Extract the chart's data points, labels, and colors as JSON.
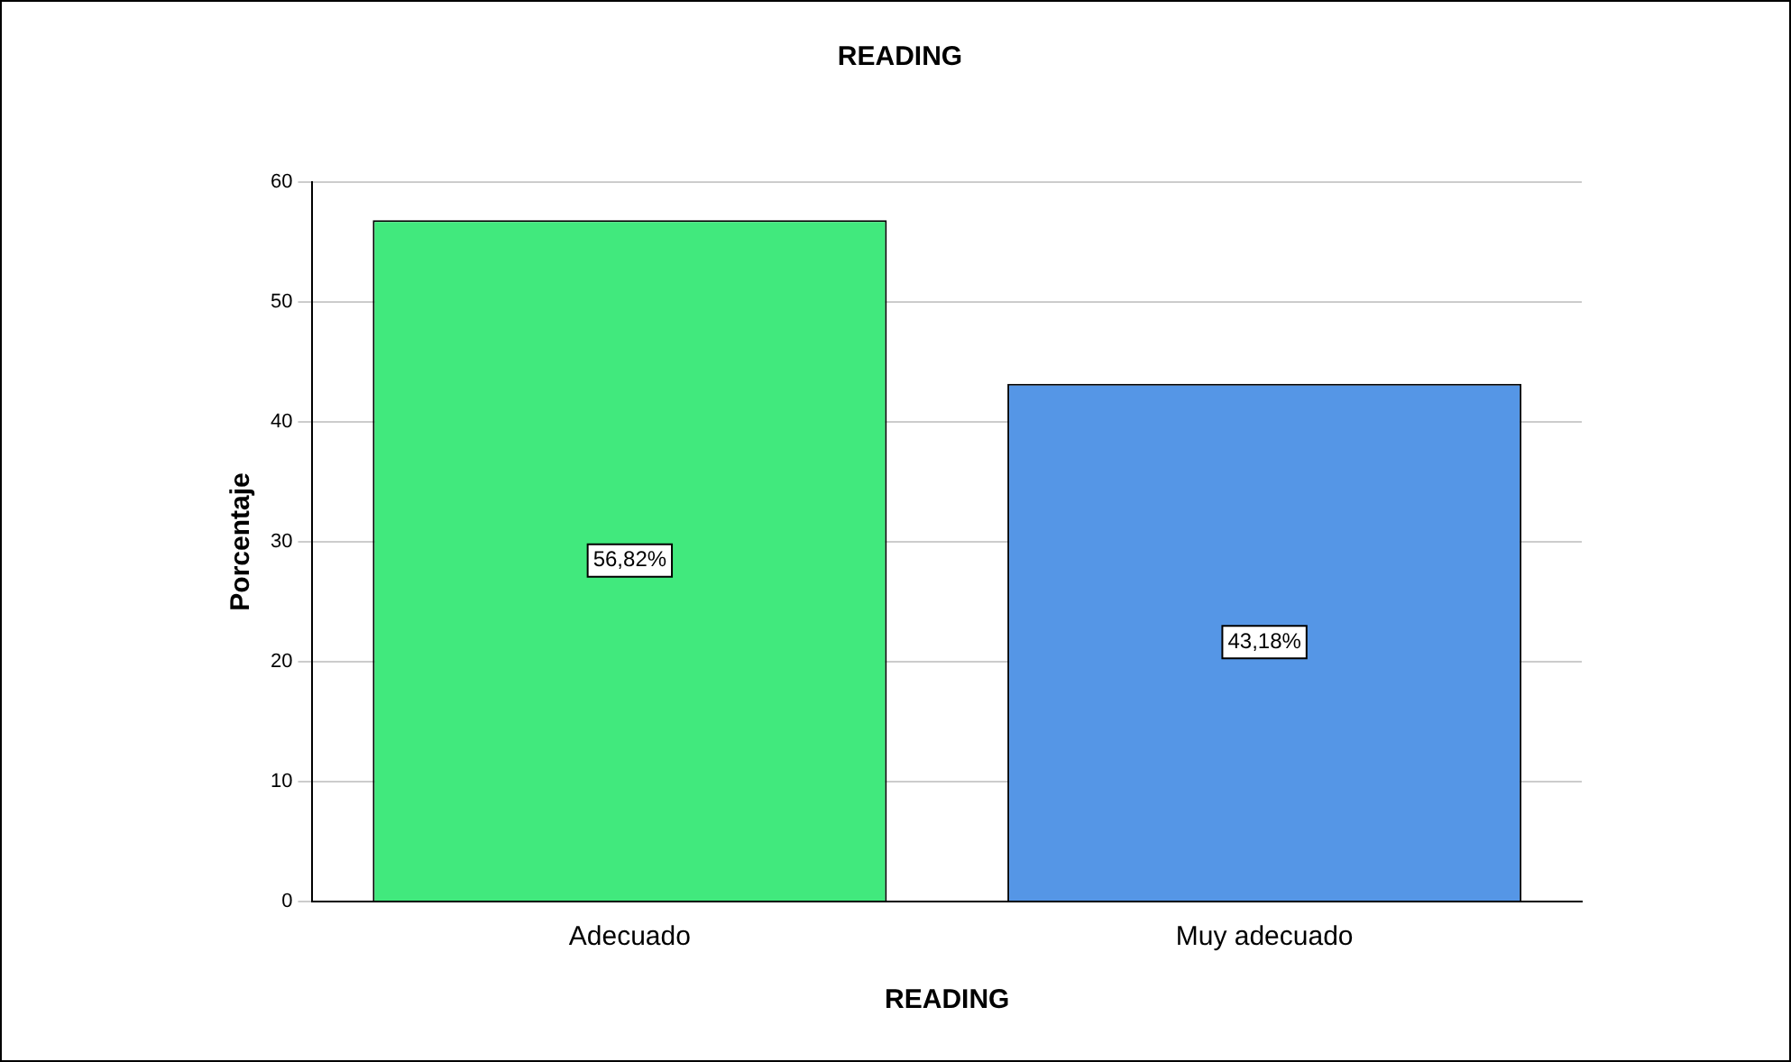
{
  "chart_data": {
    "type": "bar",
    "title": "READING",
    "xlabel": "READING",
    "ylabel": "Porcentaje",
    "categories": [
      "Adecuado",
      "Muy adecuado"
    ],
    "values": [
      56.82,
      43.18
    ],
    "colors": [
      "#41e97d",
      "#5596e6"
    ],
    "value_labels": [
      "56,82%",
      "43,18%"
    ],
    "ylim": [
      0,
      60
    ],
    "yticks": [
      0,
      10,
      20,
      30,
      40,
      50,
      60
    ],
    "grid": "y",
    "legend": false
  }
}
